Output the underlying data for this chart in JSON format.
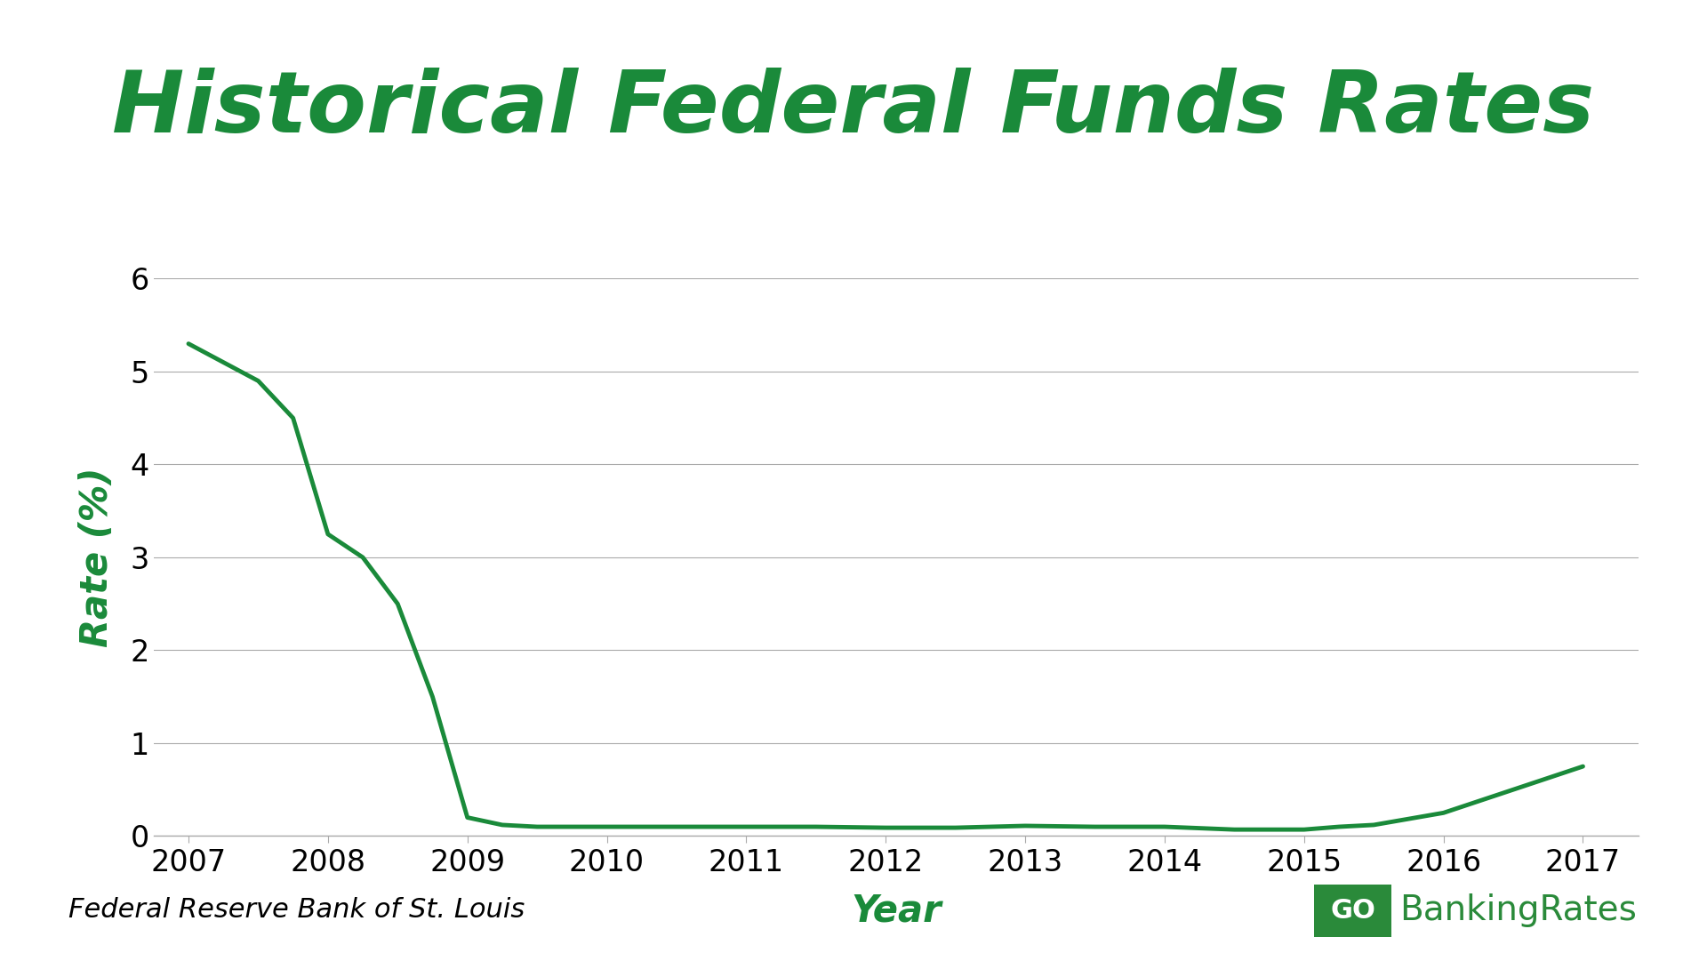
{
  "title": "Historical Federal Funds Rates",
  "xlabel": "Year",
  "ylabel": "Rate (%)",
  "line_color": "#1a8a3a",
  "title_color": "#1a8a3a",
  "label_color": "#1a8a3a",
  "background_color": "#ffffff",
  "grid_color": "#aaaaaa",
  "source_text": "Federal Reserve Bank of St. Louis",
  "logo_bg_color": "#2a8a3a",
  "logo_text_color": "#2a8a3a",
  "years": [
    2007,
    2007.25,
    2007.5,
    2007.75,
    2008,
    2008.25,
    2008.5,
    2008.75,
    2009,
    2009.25,
    2009.5,
    2010,
    2010.5,
    2011,
    2011.5,
    2012,
    2012.5,
    2013,
    2013.5,
    2014,
    2014.5,
    2015,
    2015.25,
    2015.5,
    2016,
    2016.5,
    2017
  ],
  "rates": [
    5.3,
    5.1,
    4.9,
    4.5,
    3.25,
    3.0,
    2.5,
    1.5,
    0.2,
    0.12,
    0.1,
    0.1,
    0.1,
    0.1,
    0.1,
    0.09,
    0.09,
    0.11,
    0.1,
    0.1,
    0.07,
    0.07,
    0.1,
    0.12,
    0.25,
    0.5,
    0.75
  ],
  "xlim": [
    2006.75,
    2017.4
  ],
  "ylim": [
    0,
    6
  ],
  "yticks": [
    0,
    1,
    2,
    3,
    4,
    5,
    6
  ],
  "xticks": [
    2007,
    2008,
    2009,
    2010,
    2011,
    2012,
    2013,
    2014,
    2015,
    2016,
    2017
  ],
  "title_fontsize": 70,
  "axis_label_fontsize": 30,
  "tick_fontsize": 24,
  "source_fontsize": 22,
  "line_width": 3.5
}
